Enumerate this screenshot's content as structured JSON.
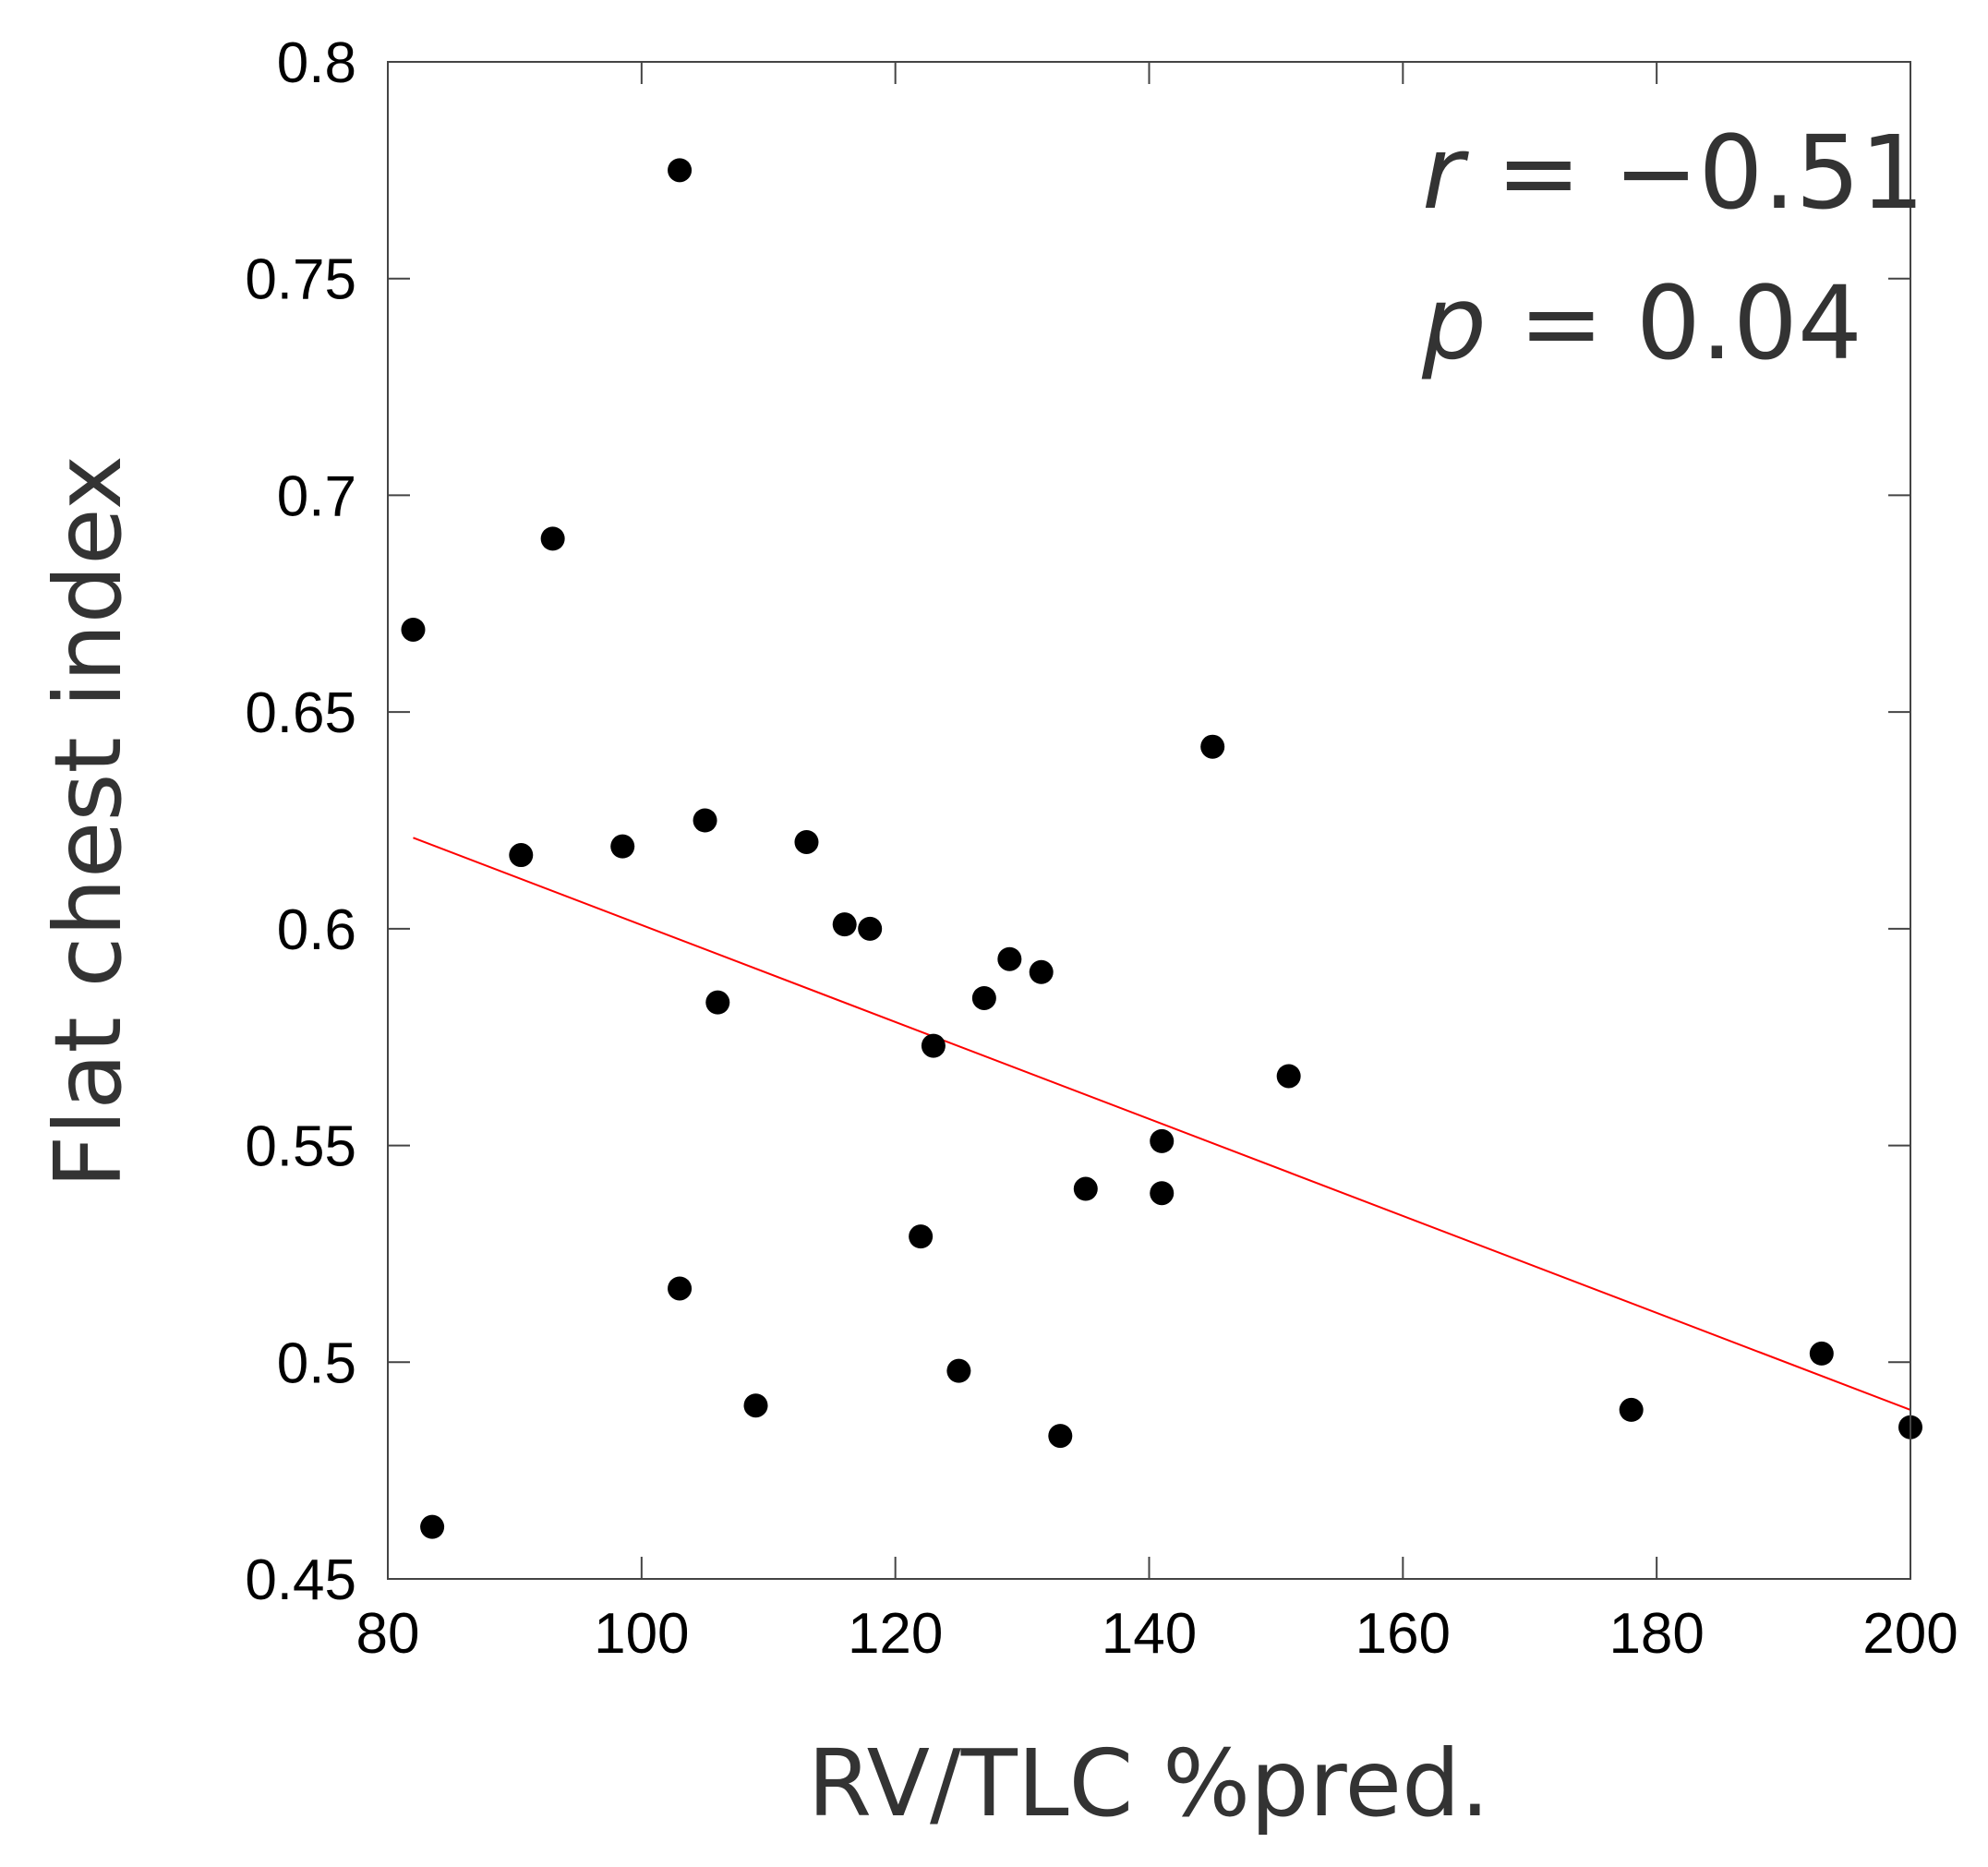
{
  "chart_data": {
    "type": "scatter",
    "title": "",
    "xlabel": "RV/TLC %pred.",
    "ylabel": "Flat chest index",
    "xlim": [
      80,
      200
    ],
    "ylim": [
      0.45,
      0.8
    ],
    "x_ticks": [
      80,
      100,
      120,
      140,
      160,
      180,
      200
    ],
    "x_tick_labels": [
      "80",
      "100",
      "120",
      "140",
      "160",
      "180",
      "200"
    ],
    "y_ticks": [
      0.45,
      0.5,
      0.55,
      0.6,
      0.65,
      0.7,
      0.75,
      0.8
    ],
    "y_tick_labels": [
      "0.45",
      "0.5",
      "0.55",
      "0.6",
      "0.65",
      "0.7",
      "0.75",
      "0.8"
    ],
    "grid": false,
    "point_color": "#000000",
    "points": [
      {
        "x": 82,
        "y": 0.669
      },
      {
        "x": 83.5,
        "y": 0.462
      },
      {
        "x": 90.5,
        "y": 0.617
      },
      {
        "x": 93,
        "y": 0.69
      },
      {
        "x": 98.5,
        "y": 0.619
      },
      {
        "x": 103,
        "y": 0.775
      },
      {
        "x": 103,
        "y": 0.517
      },
      {
        "x": 105,
        "y": 0.625
      },
      {
        "x": 106,
        "y": 0.583
      },
      {
        "x": 109,
        "y": 0.49
      },
      {
        "x": 113,
        "y": 0.62
      },
      {
        "x": 116,
        "y": 0.601
      },
      {
        "x": 118,
        "y": 0.6
      },
      {
        "x": 122,
        "y": 0.529
      },
      {
        "x": 123,
        "y": 0.573
      },
      {
        "x": 125,
        "y": 0.498
      },
      {
        "x": 127,
        "y": 0.584
      },
      {
        "x": 129,
        "y": 0.593
      },
      {
        "x": 131.5,
        "y": 0.59
      },
      {
        "x": 133,
        "y": 0.483
      },
      {
        "x": 135,
        "y": 0.54
      },
      {
        "x": 141,
        "y": 0.551
      },
      {
        "x": 141,
        "y": 0.539
      },
      {
        "x": 145,
        "y": 0.642
      },
      {
        "x": 151,
        "y": 0.566
      },
      {
        "x": 178,
        "y": 0.489
      },
      {
        "x": 193,
        "y": 0.502
      },
      {
        "x": 200,
        "y": 0.485
      }
    ],
    "trendline": {
      "color": "#ff0000",
      "x": [
        82,
        200
      ],
      "y": [
        0.621,
        0.489
      ]
    },
    "annotations": [
      {
        "var": "r",
        "text": " = −0.51"
      },
      {
        "var": "p",
        "text": " = 0.04"
      }
    ]
  }
}
